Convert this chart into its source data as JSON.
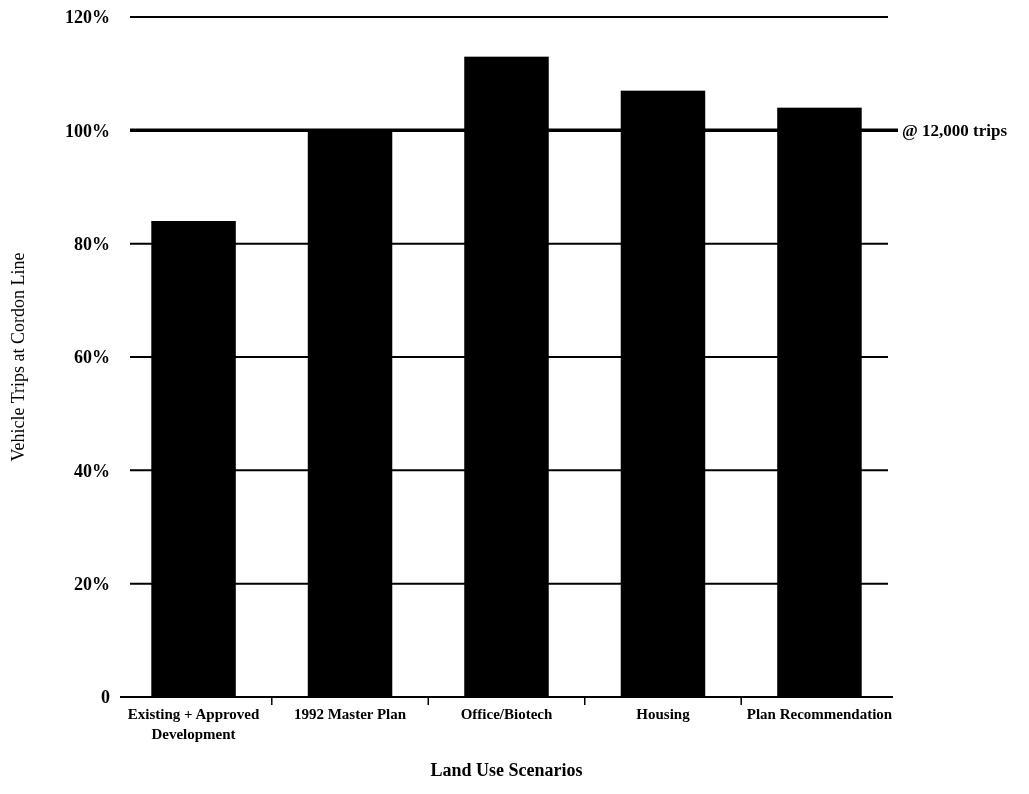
{
  "chart_data": {
    "type": "bar",
    "xlabel": "Land Use Scenarios",
    "ylabel": "Vehicle Trips at Cordon Line",
    "categories": [
      "Existing + Approved Development",
      "1992 Master Plan",
      "Office/Biotech",
      "Housing",
      "Plan Recommendation"
    ],
    "values": [
      84,
      100,
      113,
      107,
      104
    ],
    "color": "#000000",
    "ylim": [
      0,
      120
    ],
    "yticks": [
      0,
      {
        "value": 20,
        "label": "20%"
      },
      {
        "value": 40,
        "label": "40%"
      },
      {
        "value": 60,
        "label": "60%"
      },
      {
        "value": 80,
        "label": "80%"
      },
      {
        "value": 100,
        "label": "100%"
      },
      {
        "value": 120,
        "label": "120%"
      }
    ],
    "grid": "y",
    "ref_lines": [
      {
        "axis": "y",
        "value": 100,
        "label": "@ 12,000 trips"
      }
    ]
  }
}
